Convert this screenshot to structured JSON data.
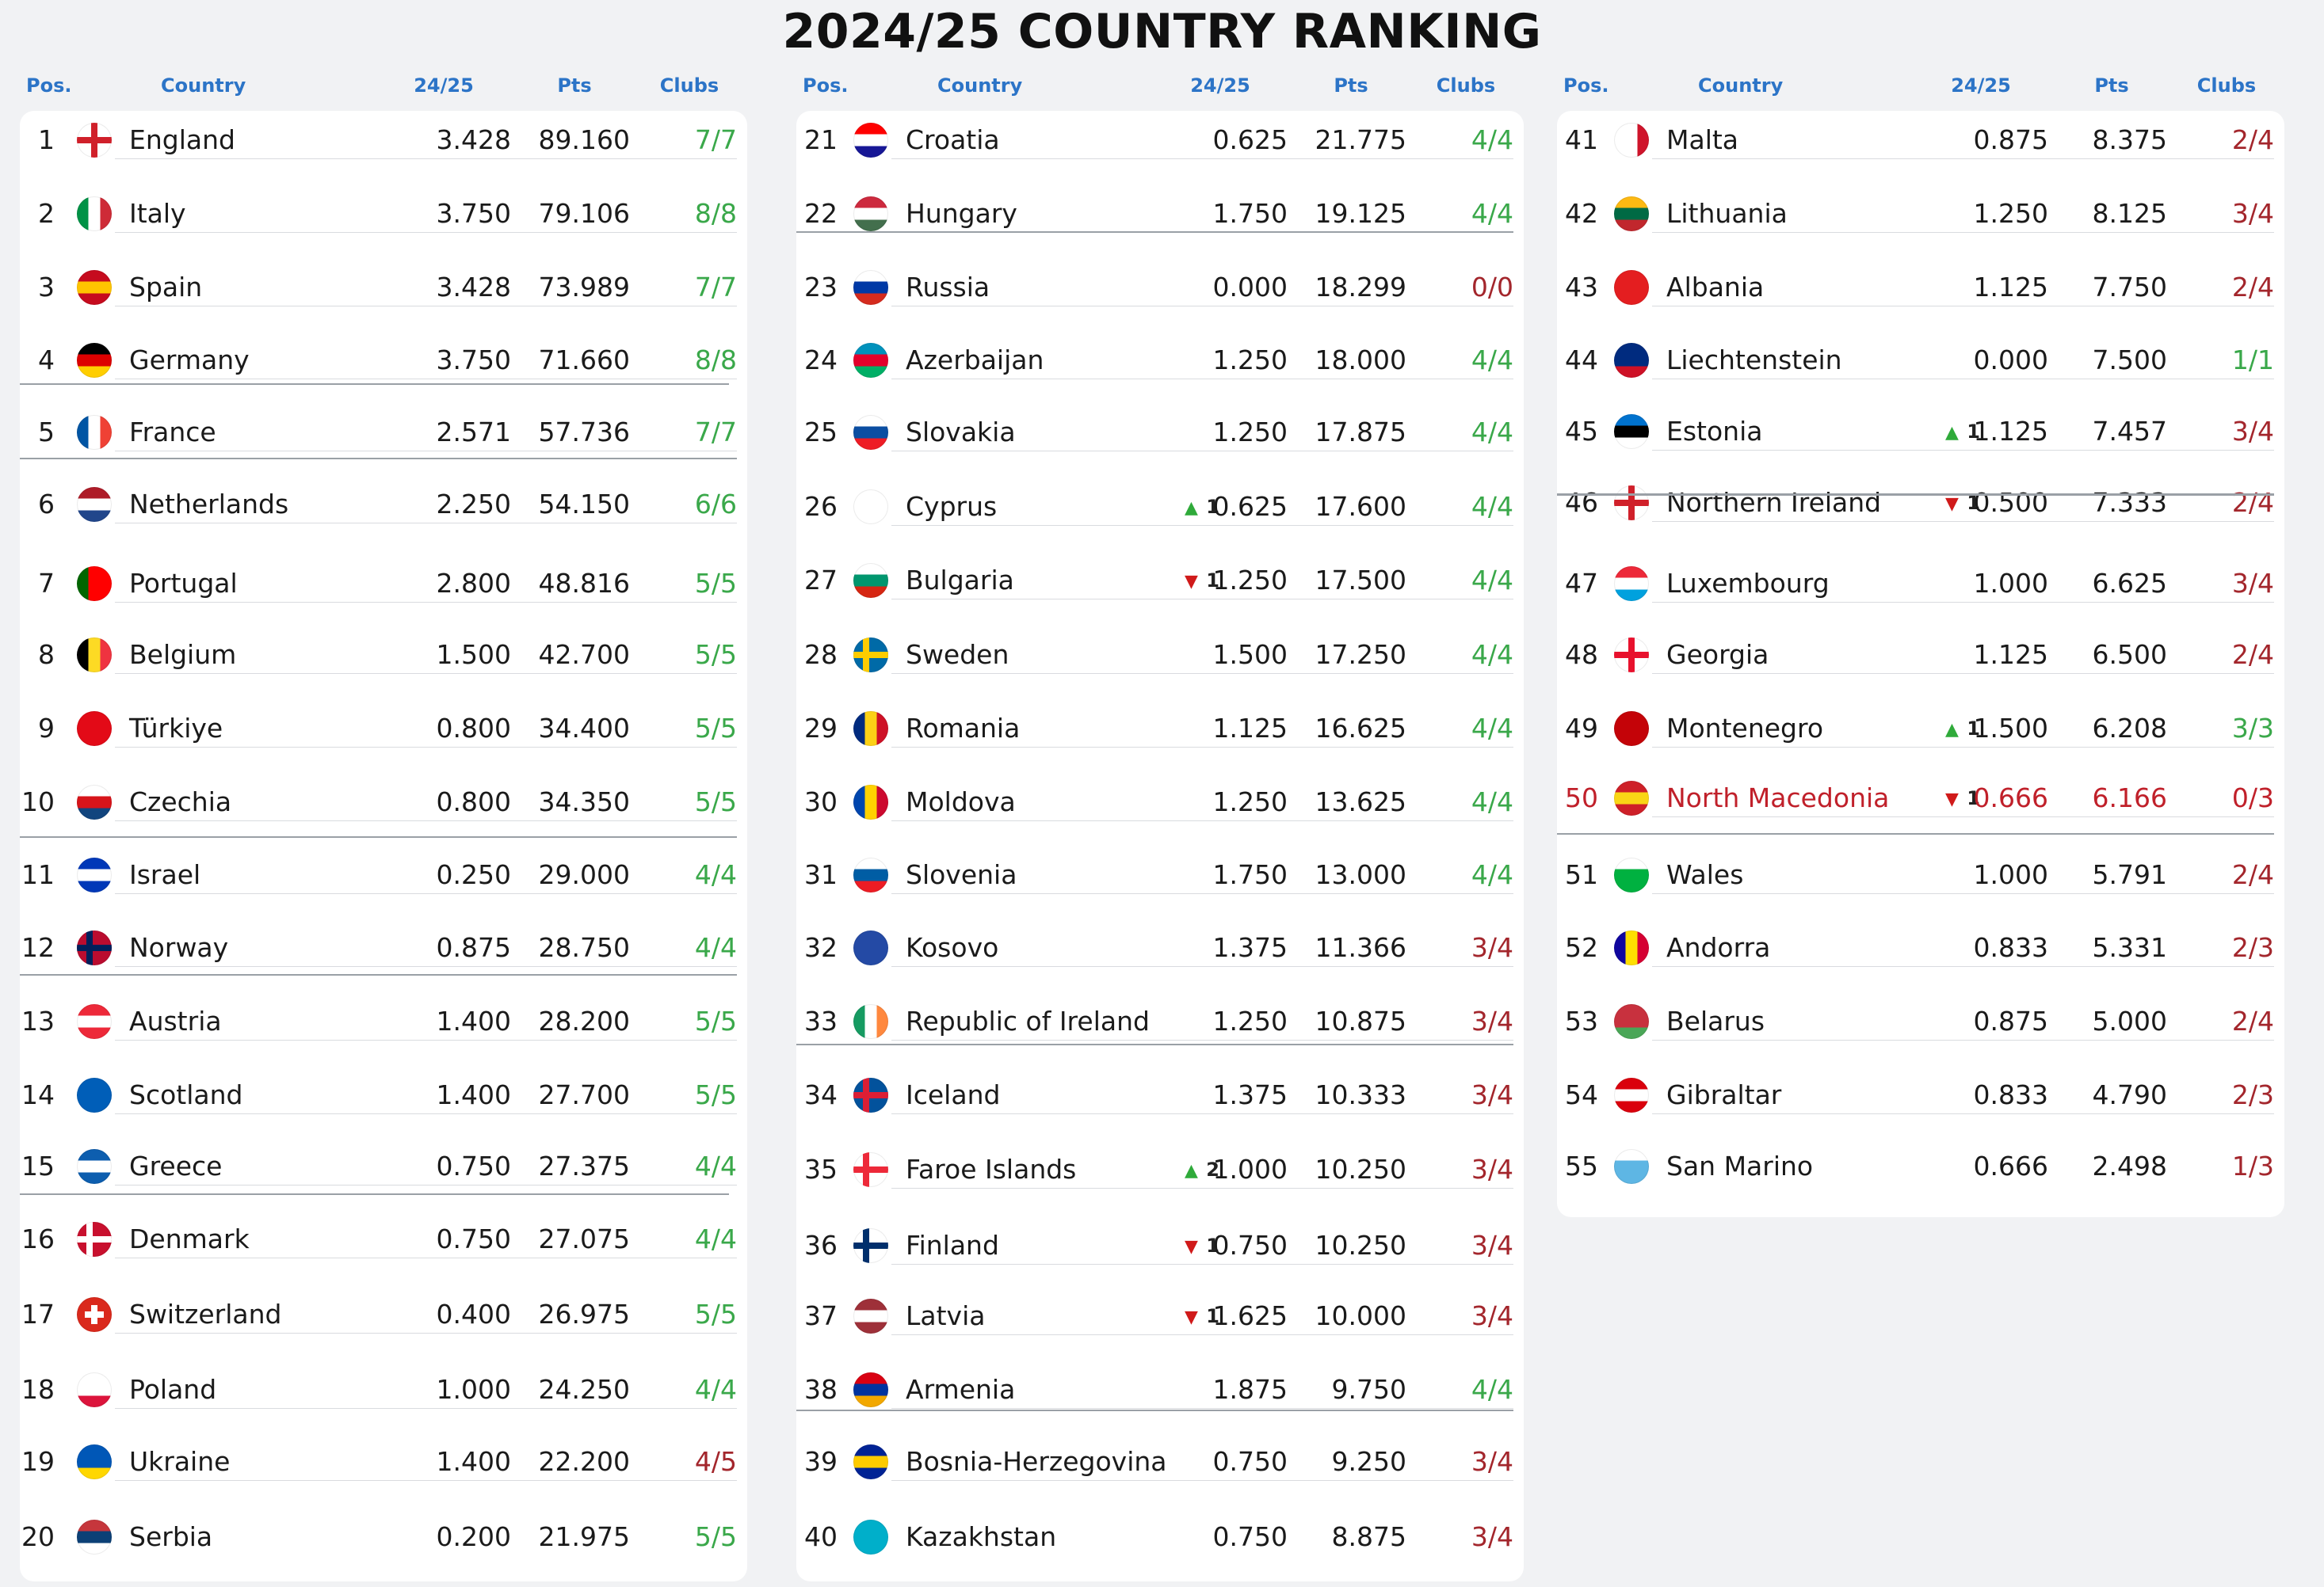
{
  "title": "2024/25 COUNTRY RANKING",
  "headers": {
    "pos": "Pos.",
    "country": "Country",
    "season": "24/25",
    "pts": "Pts",
    "clubs": "Clubs"
  },
  "colors": {
    "green": "#3aa84a",
    "red": "#c0202a",
    "header": "#2c74c7",
    "up": "#2faa3a",
    "down": "#d01a1a"
  },
  "rankings": [
    {
      "pos": "1",
      "country": "England",
      "s": "3.428",
      "pts": "89.160",
      "clubs": "7/7",
      "cc": "g",
      "flag": [
        "#ffffff",
        "#ffffff",
        "#ffffff"
      ],
      "cross": "#d0202a"
    },
    {
      "pos": "2",
      "country": "Italy",
      "s": "3.750",
      "pts": "79.106",
      "clubs": "8/8",
      "cc": "g",
      "flag": [
        "#009246",
        "#ffffff",
        "#ce2b37"
      ],
      "dir": "v"
    },
    {
      "pos": "3",
      "country": "Spain",
      "s": "3.428",
      "pts": "73.989",
      "clubs": "7/7",
      "cc": "g",
      "flag": [
        "#c60b1e",
        "#ffc400",
        "#c60b1e"
      ]
    },
    {
      "pos": "4",
      "country": "Germany",
      "s": "3.750",
      "pts": "71.660",
      "clubs": "8/8",
      "cc": "g",
      "flag": [
        "#000000",
        "#dd0000",
        "#ffce00"
      ]
    },
    {
      "pos": "5",
      "country": "France",
      "s": "2.571",
      "pts": "57.736",
      "clubs": "7/7",
      "cc": "g",
      "flag": [
        "#0055a4",
        "#ffffff",
        "#ef4135"
      ],
      "dir": "v"
    },
    {
      "pos": "6",
      "country": "Netherlands",
      "s": "2.250",
      "pts": "54.150",
      "clubs": "6/6",
      "cc": "g",
      "flag": [
        "#ae1c28",
        "#ffffff",
        "#21468b"
      ]
    },
    {
      "pos": "7",
      "country": "Portugal",
      "s": "2.800",
      "pts": "48.816",
      "clubs": "5/5",
      "cc": "g",
      "flag": [
        "#006600",
        "#ff0000",
        "#ff0000"
      ],
      "dir": "v"
    },
    {
      "pos": "8",
      "country": "Belgium",
      "s": "1.500",
      "pts": "42.700",
      "clubs": "5/5",
      "cc": "g",
      "flag": [
        "#000000",
        "#fdda24",
        "#ef3340"
      ],
      "dir": "v"
    },
    {
      "pos": "9",
      "country": "Türkiye",
      "s": "0.800",
      "pts": "34.400",
      "clubs": "5/5",
      "cc": "g",
      "flag": [
        "#e30a17",
        "#e30a17",
        "#e30a17"
      ]
    },
    {
      "pos": "10",
      "country": "Czechia",
      "s": "0.800",
      "pts": "34.350",
      "clubs": "5/5",
      "cc": "g",
      "flag": [
        "#ffffff",
        "#d7141a",
        "#11457e"
      ]
    },
    {
      "pos": "11",
      "country": "Israel",
      "s": "0.250",
      "pts": "29.000",
      "clubs": "4/4",
      "cc": "g",
      "flag": [
        "#0038b8",
        "#ffffff",
        "#0038b8"
      ]
    },
    {
      "pos": "12",
      "country": "Norway",
      "s": "0.875",
      "pts": "28.750",
      "clubs": "4/4",
      "cc": "g",
      "flag": [
        "#ba0c2f",
        "#ba0c2f",
        "#ba0c2f"
      ],
      "cross": "#00205b"
    },
    {
      "pos": "13",
      "country": "Austria",
      "s": "1.400",
      "pts": "28.200",
      "clubs": "5/5",
      "cc": "g",
      "flag": [
        "#ed2939",
        "#ffffff",
        "#ed2939"
      ]
    },
    {
      "pos": "14",
      "country": "Scotland",
      "s": "1.400",
      "pts": "27.700",
      "clubs": "5/5",
      "cc": "g",
      "flag": [
        "#005eb8",
        "#005eb8",
        "#005eb8"
      ]
    },
    {
      "pos": "15",
      "country": "Greece",
      "s": "0.750",
      "pts": "27.375",
      "clubs": "4/4",
      "cc": "g",
      "flag": [
        "#0d5eaf",
        "#ffffff",
        "#0d5eaf"
      ]
    },
    {
      "pos": "16",
      "country": "Denmark",
      "s": "0.750",
      "pts": "27.075",
      "clubs": "4/4",
      "cc": "g",
      "flag": [
        "#c8102e",
        "#c8102e",
        "#c8102e"
      ],
      "cross": "#ffffff"
    },
    {
      "pos": "17",
      "country": "Switzerland",
      "s": "0.400",
      "pts": "26.975",
      "clubs": "5/5",
      "cc": "g",
      "flag": [
        "#da291c",
        "#da291c",
        "#da291c"
      ],
      "cross": "#ffffff"
    },
    {
      "pos": "18",
      "country": "Poland",
      "s": "1.000",
      "pts": "24.250",
      "clubs": "4/4",
      "cc": "g",
      "flag": [
        "#ffffff",
        "#ffffff",
        "#dc143c"
      ]
    },
    {
      "pos": "19",
      "country": "Ukraine",
      "s": "1.400",
      "pts": "22.200",
      "clubs": "4/5",
      "cc": "r",
      "flag": [
        "#0057b7",
        "#0057b7",
        "#ffd700"
      ]
    },
    {
      "pos": "20",
      "country": "Serbia",
      "s": "0.200",
      "pts": "21.975",
      "clubs": "5/5",
      "cc": "g",
      "flag": [
        "#c6363c",
        "#0c4076",
        "#ffffff"
      ]
    },
    {
      "pos": "21",
      "country": "Croatia",
      "s": "0.625",
      "pts": "21.775",
      "clubs": "4/4",
      "cc": "g",
      "flag": [
        "#ff0000",
        "#ffffff",
        "#171796"
      ]
    },
    {
      "pos": "22",
      "country": "Hungary",
      "s": "1.750",
      "pts": "19.125",
      "clubs": "4/4",
      "cc": "g",
      "flag": [
        "#cd2a3e",
        "#ffffff",
        "#436f4d"
      ]
    },
    {
      "pos": "23",
      "country": "Russia",
      "s": "0.000",
      "pts": "18.299",
      "clubs": "0/0",
      "cc": "r",
      "flag": [
        "#ffffff",
        "#0039a6",
        "#d52b1e"
      ]
    },
    {
      "pos": "24",
      "country": "Azerbaijan",
      "s": "1.250",
      "pts": "18.000",
      "clubs": "4/4",
      "cc": "g",
      "flag": [
        "#0092bc",
        "#e4002b",
        "#00af66"
      ]
    },
    {
      "pos": "25",
      "country": "Slovakia",
      "s": "1.250",
      "pts": "17.875",
      "clubs": "4/4",
      "cc": "g",
      "flag": [
        "#ffffff",
        "#0b4ea2",
        "#ee1c25"
      ]
    },
    {
      "pos": "26",
      "country": "Cyprus",
      "s": "0.625",
      "pts": "17.600",
      "clubs": "4/4",
      "cc": "g",
      "flag": [
        "#ffffff",
        "#ffffff",
        "#ffffff"
      ],
      "mv": "up",
      "mvn": "1"
    },
    {
      "pos": "27",
      "country": "Bulgaria",
      "s": "1.250",
      "pts": "17.500",
      "clubs": "4/4",
      "cc": "g",
      "flag": [
        "#ffffff",
        "#00966e",
        "#d62612"
      ],
      "mv": "down",
      "mvn": "1"
    },
    {
      "pos": "28",
      "country": "Sweden",
      "s": "1.500",
      "pts": "17.250",
      "clubs": "4/4",
      "cc": "g",
      "flag": [
        "#006aa7",
        "#006aa7",
        "#006aa7"
      ],
      "cross": "#fecc00"
    },
    {
      "pos": "29",
      "country": "Romania",
      "s": "1.125",
      "pts": "16.625",
      "clubs": "4/4",
      "cc": "g",
      "flag": [
        "#002b7f",
        "#fcd116",
        "#ce1126"
      ],
      "dir": "v"
    },
    {
      "pos": "30",
      "country": "Moldova",
      "s": "1.250",
      "pts": "13.625",
      "clubs": "4/4",
      "cc": "g",
      "flag": [
        "#0046ae",
        "#ffd200",
        "#cc092f"
      ],
      "dir": "v"
    },
    {
      "pos": "31",
      "country": "Slovenia",
      "s": "1.750",
      "pts": "13.000",
      "clubs": "4/4",
      "cc": "g",
      "flag": [
        "#ffffff",
        "#005da4",
        "#ed1c24"
      ]
    },
    {
      "pos": "32",
      "country": "Kosovo",
      "s": "1.375",
      "pts": "11.366",
      "clubs": "3/4",
      "cc": "r",
      "flag": [
        "#244aa5",
        "#244aa5",
        "#244aa5"
      ]
    },
    {
      "pos": "33",
      "country": "Republic of Ireland",
      "s": "1.250",
      "pts": "10.875",
      "clubs": "3/4",
      "cc": "r",
      "flag": [
        "#169b62",
        "#ffffff",
        "#ff883e"
      ],
      "dir": "v"
    },
    {
      "pos": "34",
      "country": "Iceland",
      "s": "1.375",
      "pts": "10.333",
      "clubs": "3/4",
      "cc": "r",
      "flag": [
        "#02529c",
        "#02529c",
        "#02529c"
      ],
      "cross": "#dc1e35"
    },
    {
      "pos": "35",
      "country": "Faroe Islands",
      "s": "1.000",
      "pts": "10.250",
      "clubs": "3/4",
      "cc": "r",
      "flag": [
        "#ffffff",
        "#ffffff",
        "#ffffff"
      ],
      "cross": "#ed2939",
      "mv": "up",
      "mvn": "2"
    },
    {
      "pos": "36",
      "country": "Finland",
      "s": "0.750",
      "pts": "10.250",
      "clubs": "3/4",
      "cc": "r",
      "flag": [
        "#ffffff",
        "#ffffff",
        "#ffffff"
      ],
      "cross": "#002f6c",
      "mv": "down",
      "mvn": "1"
    },
    {
      "pos": "37",
      "country": "Latvia",
      "s": "1.625",
      "pts": "10.000",
      "clubs": "3/4",
      "cc": "r",
      "flag": [
        "#9e3039",
        "#ffffff",
        "#9e3039"
      ],
      "mv": "down",
      "mvn": "1"
    },
    {
      "pos": "38",
      "country": "Armenia",
      "s": "1.875",
      "pts": "9.750",
      "clubs": "4/4",
      "cc": "g",
      "flag": [
        "#d90012",
        "#0033a0",
        "#f2a800"
      ]
    },
    {
      "pos": "39",
      "country": "Bosnia-Herzegovina",
      "s": "0.750",
      "pts": "9.250",
      "clubs": "3/4",
      "cc": "r",
      "flag": [
        "#002395",
        "#fecb00",
        "#002395"
      ]
    },
    {
      "pos": "40",
      "country": "Kazakhstan",
      "s": "0.750",
      "pts": "8.875",
      "clubs": "3/4",
      "cc": "r",
      "flag": [
        "#00afca",
        "#00afca",
        "#00afca"
      ]
    },
    {
      "pos": "41",
      "country": "Malta",
      "s": "0.875",
      "pts": "8.375",
      "clubs": "2/4",
      "cc": "r",
      "flag": [
        "#ffffff",
        "#ffffff",
        "#cf142b"
      ],
      "dir": "v"
    },
    {
      "pos": "42",
      "country": "Lithuania",
      "s": "1.250",
      "pts": "8.125",
      "clubs": "3/4",
      "cc": "r",
      "flag": [
        "#fdb913",
        "#006a44",
        "#c1272d"
      ]
    },
    {
      "pos": "43",
      "country": "Albania",
      "s": "1.125",
      "pts": "7.750",
      "clubs": "2/4",
      "cc": "r",
      "flag": [
        "#e41e20",
        "#e41e20",
        "#e41e20"
      ]
    },
    {
      "pos": "44",
      "country": "Liechtenstein",
      "s": "0.000",
      "pts": "7.500",
      "clubs": "1/1",
      "cc": "g",
      "flag": [
        "#002b7f",
        "#002b7f",
        "#ce1126"
      ]
    },
    {
      "pos": "45",
      "country": "Estonia",
      "s": "1.125",
      "pts": "7.457",
      "clubs": "3/4",
      "cc": "r",
      "flag": [
        "#0072ce",
        "#000000",
        "#ffffff"
      ],
      "mv": "up",
      "mvn": "1"
    },
    {
      "pos": "46",
      "country": "Northern Ireland",
      "s": "0.500",
      "pts": "7.333",
      "clubs": "2/4",
      "cc": "r",
      "flag": [
        "#ffffff",
        "#ffffff",
        "#ffffff"
      ],
      "cross": "#d0202a",
      "mv": "down",
      "mvn": "1"
    },
    {
      "pos": "47",
      "country": "Luxembourg",
      "s": "1.000",
      "pts": "6.625",
      "clubs": "3/4",
      "cc": "r",
      "flag": [
        "#ed2939",
        "#ffffff",
        "#00a1de"
      ]
    },
    {
      "pos": "48",
      "country": "Georgia",
      "s": "1.125",
      "pts": "6.500",
      "clubs": "2/4",
      "cc": "r",
      "flag": [
        "#ffffff",
        "#ffffff",
        "#ffffff"
      ],
      "cross": "#e8112d"
    },
    {
      "pos": "49",
      "country": "Montenegro",
      "s": "1.500",
      "pts": "6.208",
      "clubs": "3/3",
      "cc": "g",
      "flag": [
        "#c40308",
        "#c40308",
        "#c40308"
      ],
      "mv": "up",
      "mvn": "1"
    },
    {
      "pos": "50",
      "country": "North Macedonia",
      "s": "0.666",
      "pts": "6.166",
      "clubs": "0/3",
      "cc": "r",
      "flag": [
        "#ce2028",
        "#f9d616",
        "#ce2028"
      ],
      "mv": "down",
      "mvn": "1",
      "highlight": true
    },
    {
      "pos": "51",
      "country": "Wales",
      "s": "1.000",
      "pts": "5.791",
      "clubs": "2/4",
      "cc": "r",
      "flag": [
        "#ffffff",
        "#00b140",
        "#00b140"
      ]
    },
    {
      "pos": "52",
      "country": "Andorra",
      "s": "0.833",
      "pts": "5.331",
      "clubs": "2/3",
      "cc": "r",
      "flag": [
        "#10069f",
        "#fedf00",
        "#d50032"
      ],
      "dir": "v"
    },
    {
      "pos": "53",
      "country": "Belarus",
      "s": "0.875",
      "pts": "5.000",
      "clubs": "2/4",
      "cc": "r",
      "flag": [
        "#c8313e",
        "#c8313e",
        "#4aa657"
      ]
    },
    {
      "pos": "54",
      "country": "Gibraltar",
      "s": "0.833",
      "pts": "4.790",
      "clubs": "2/3",
      "cc": "r",
      "flag": [
        "#da000c",
        "#ffffff",
        "#da000c"
      ]
    },
    {
      "pos": "55",
      "country": "San Marino",
      "s": "0.666",
      "pts": "2.498",
      "clubs": "1/3",
      "cc": "r",
      "flag": [
        "#ffffff",
        "#5eb6e4",
        "#5eb6e4"
      ]
    }
  ]
}
